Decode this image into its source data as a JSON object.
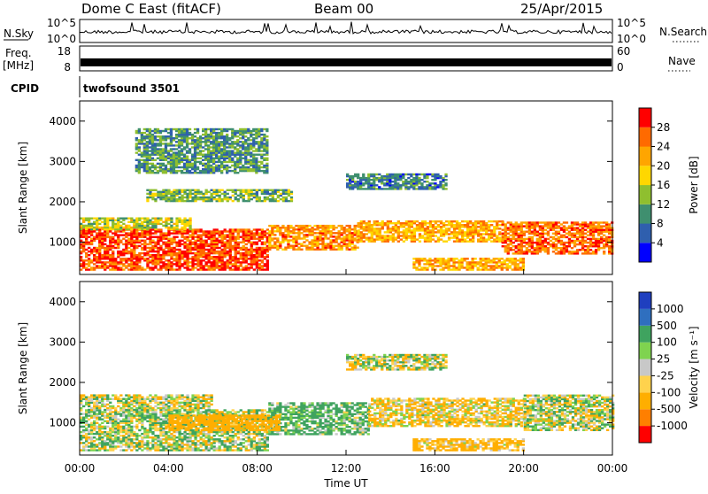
{
  "header": {
    "station": "Dome C East (fitACF)",
    "beam": "Beam 00",
    "date": "25/Apr/2015"
  },
  "top_panels": {
    "sky_label": "N.Sky",
    "search_label": "N.Search",
    "sky_ticks": [
      "10^5",
      "10^0"
    ],
    "search_ticks": [
      "10^5",
      "10^0"
    ],
    "freq_label_1": "Freq.",
    "freq_label_2": "[MHz]",
    "freq_ticks": [
      "18",
      "8"
    ],
    "nave_label": "Nave",
    "nave_ticks": [
      "60",
      "0"
    ],
    "cpid_label": "CPID",
    "cpid_text": "twofsound 3501"
  },
  "colors": {
    "power": [
      "#0000ff",
      "#2f5fae",
      "#3f8f6f",
      "#8fbf2f",
      "#ffd700",
      "#ffa500",
      "#ff6a00",
      "#ff0000"
    ],
    "velocity": [
      "#ff0000",
      "#ff7f00",
      "#ffae00",
      "#ffd24d",
      "#c8c8c8",
      "#7fd34f",
      "#3fa35f",
      "#2f6fbf",
      "#1f3fbf"
    ]
  },
  "chart_data": [
    {
      "type": "heatmap",
      "panel": "power",
      "xlabel": "Time UT",
      "ylabel": "Slant Range [km]",
      "x_ticks": [
        "00:00",
        "04:00",
        "08:00",
        "12:00",
        "16:00",
        "20:00",
        "00:00"
      ],
      "y_ticks": [
        "1000",
        "2000",
        "3000",
        "4000"
      ],
      "ylim": [
        200,
        4500
      ],
      "colorbar_label": "Power [dB]",
      "colorbar_ticks": [
        "4",
        "8",
        "12",
        "16",
        "20",
        "24",
        "28"
      ],
      "colorbar_range": [
        0,
        30
      ],
      "regions": [
        {
          "t0": 0.0,
          "t1": 8.5,
          "r0": 300,
          "r1": 1300,
          "level": 26
        },
        {
          "t0": 0.0,
          "t1": 5.0,
          "r0": 1300,
          "r1": 1600,
          "level": 15
        },
        {
          "t0": 8.5,
          "t1": 12.5,
          "r0": 800,
          "r1": 1400,
          "level": 22
        },
        {
          "t0": 12.5,
          "t1": 19.0,
          "r0": 1000,
          "r1": 1500,
          "level": 20
        },
        {
          "t0": 19.0,
          "t1": 24.0,
          "r0": 700,
          "r1": 1500,
          "level": 24
        },
        {
          "t0": 12.0,
          "t1": 16.5,
          "r0": 2300,
          "r1": 2700,
          "level": 8
        },
        {
          "t0": 3.0,
          "t1": 9.5,
          "r0": 2000,
          "r1": 2300,
          "level": 12
        },
        {
          "t0": 15.0,
          "t1": 20.0,
          "r0": 300,
          "r1": 600,
          "level": 20
        },
        {
          "t0": 2.5,
          "t1": 8.5,
          "r0": 2700,
          "r1": 3800,
          "level": 10
        }
      ]
    },
    {
      "type": "heatmap",
      "panel": "velocity",
      "xlabel": "Time UT",
      "ylabel": "Slant Range [km]",
      "x_ticks": [
        "00:00",
        "04:00",
        "08:00",
        "12:00",
        "16:00",
        "20:00",
        "00:00"
      ],
      "y_ticks": [
        "1000",
        "2000",
        "3000",
        "4000"
      ],
      "ylim": [
        200,
        4500
      ],
      "colorbar_label": "Velocity [m s⁻¹]",
      "colorbar_ticks": [
        "-1000",
        "-500",
        "-100",
        "-25",
        "25",
        "100",
        "500",
        "1000"
      ],
      "colorbar_range": [
        -1500,
        1500
      ],
      "regions": [
        {
          "t0": 0.0,
          "t1": 8.5,
          "r0": 300,
          "r1": 1300,
          "level": 40
        },
        {
          "t0": 0.0,
          "t1": 6.0,
          "r0": 1300,
          "r1": 1700,
          "level": 0
        },
        {
          "t0": 8.5,
          "t1": 13.0,
          "r0": 700,
          "r1": 1500,
          "level": 150
        },
        {
          "t0": 13.0,
          "t1": 20.0,
          "r0": 900,
          "r1": 1600,
          "level": -90
        },
        {
          "t0": 20.0,
          "t1": 24.0,
          "r0": 800,
          "r1": 1700,
          "level": 0
        },
        {
          "t0": 12.0,
          "t1": 16.5,
          "r0": 2300,
          "r1": 2700,
          "level": 0
        },
        {
          "t0": 4.0,
          "t1": 9.0,
          "r0": 800,
          "r1": 1200,
          "level": -300
        },
        {
          "t0": 15.0,
          "t1": 20.0,
          "r0": 300,
          "r1": 600,
          "level": -150
        }
      ]
    }
  ]
}
